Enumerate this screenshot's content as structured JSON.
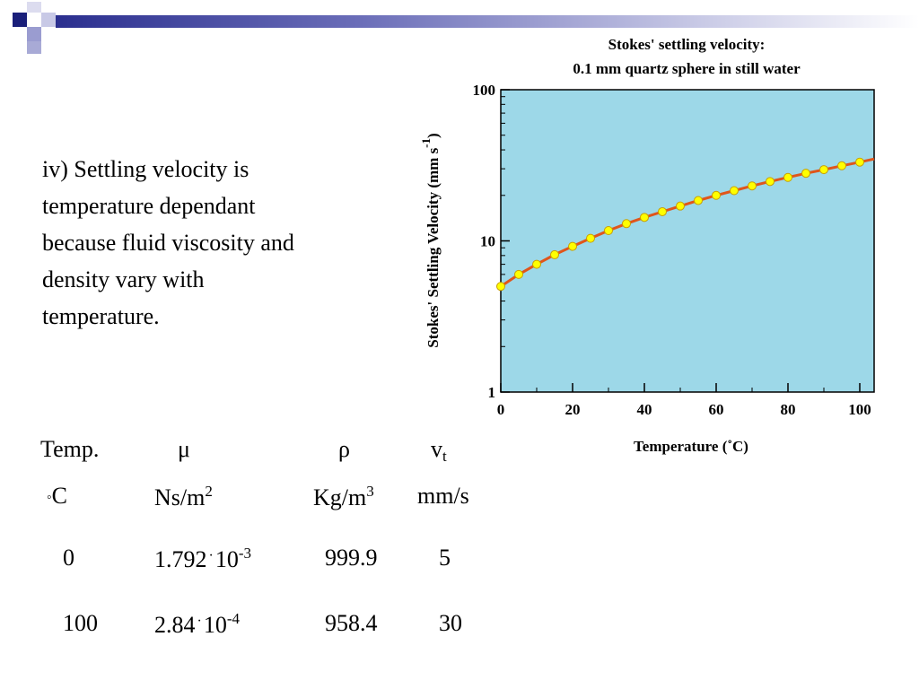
{
  "slide": {
    "body_lines": [
      "iv) Settling velocity is",
      "temperature dependant",
      "because fluid viscosity and",
      "density vary with",
      "temperature."
    ]
  },
  "table": {
    "headers": {
      "temp": "Temp.",
      "mu": "μ",
      "rho": "ρ",
      "vt_main": "v",
      "vt_sub": "t"
    },
    "units": {
      "temp_deg": "◦",
      "temp_c": "C",
      "mu_base": "Ns/m",
      "mu_exp": "2",
      "rho_base": "Kg/m",
      "rho_exp": "3",
      "vt": "mm/s"
    },
    "rows": [
      {
        "temp": "0",
        "mu_mantissa": "1.792",
        "mu_sep": "·",
        "mu_base": "10",
        "mu_exp": "-3",
        "rho": "999.9",
        "vt": "5"
      },
      {
        "temp": "100",
        "mu_mantissa": "2.84",
        "mu_sep": "·",
        "mu_base": "10",
        "mu_exp": "-4",
        "rho": "958.4",
        "vt": "30"
      }
    ]
  },
  "chart_data": {
    "type": "line",
    "title_lines": [
      "Stokes' settling velocity:",
      "0.1 mm quartz sphere in still water"
    ],
    "xlabel": "Temperature (˚C)",
    "ylabel_main": "Stokes' Settling Velocity (mm s",
    "ylabel_exp": "-1",
    "ylabel_close": ")",
    "xlim": [
      0,
      104
    ],
    "ylim": [
      1,
      100
    ],
    "yscale": "log",
    "x_ticks": [
      0,
      20,
      40,
      60,
      80,
      100
    ],
    "x_tick_labels": [
      "0",
      "20",
      "40",
      "60",
      "80",
      "100"
    ],
    "y_ticks": [
      1,
      10,
      100
    ],
    "y_tick_labels": [
      "1",
      "10",
      "100"
    ],
    "plot_background": "#9dd8e8",
    "line_color": "#e0551b",
    "marker_color": "#ffff00",
    "marker_edge": "#c8a000",
    "series": [
      {
        "points": [
          {
            "x": 0,
            "y": 5.0
          },
          {
            "x": 5,
            "y": 6.0
          },
          {
            "x": 10,
            "y": 7.0
          },
          {
            "x": 15,
            "y": 8.1
          },
          {
            "x": 20,
            "y": 9.2
          },
          {
            "x": 25,
            "y": 10.4
          },
          {
            "x": 30,
            "y": 11.7
          },
          {
            "x": 35,
            "y": 13.0
          },
          {
            "x": 40,
            "y": 14.3
          },
          {
            "x": 45,
            "y": 15.6
          },
          {
            "x": 50,
            "y": 17.0
          },
          {
            "x": 55,
            "y": 18.5
          },
          {
            "x": 60,
            "y": 20.0
          },
          {
            "x": 65,
            "y": 21.5
          },
          {
            "x": 70,
            "y": 23.1
          },
          {
            "x": 75,
            "y": 24.7
          },
          {
            "x": 80,
            "y": 26.3
          },
          {
            "x": 85,
            "y": 28.0
          },
          {
            "x": 90,
            "y": 29.6
          },
          {
            "x": 95,
            "y": 31.4
          },
          {
            "x": 100,
            "y": 33.2
          }
        ],
        "line_end": {
          "x": 104,
          "y": 34.8
        }
      }
    ]
  }
}
